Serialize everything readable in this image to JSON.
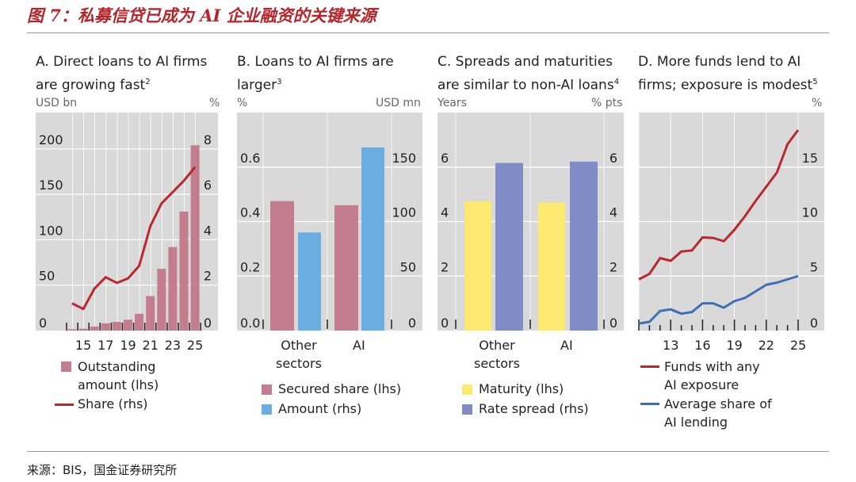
{
  "title": "图 7：私募信贷已成为 AI 企业融资的关键来源",
  "source": "来源：BIS，国金证券研究所",
  "colors": {
    "pink": "#c47d8e",
    "blue": "#6aade0",
    "yellow": "#fde870",
    "purple": "#818bc6",
    "red": "#b8282c",
    "line_blue": "#3c6fb3",
    "plot_bg": "#d9d9d9"
  },
  "chart_data": [
    {
      "id": "A",
      "type": "bar+line",
      "title": "A. Direct loans to AI firms",
      "title2": "are growing fast",
      "note": "2",
      "ylabel": "USD bn",
      "y2label": "%",
      "x": [
        14,
        15,
        16,
        17,
        18,
        19,
        20,
        21,
        22,
        23,
        24,
        25
      ],
      "xticklabels": [
        "15",
        "17",
        "19",
        "21",
        "23",
        "25"
      ],
      "yticks": [
        "0",
        "50",
        "100",
        "150",
        "200"
      ],
      "y2ticks": [
        "0",
        "2",
        "4",
        "6",
        "8"
      ],
      "ylim": [
        0,
        240
      ],
      "y2lim": [
        0,
        9.6
      ],
      "series": [
        {
          "name": "Outstanding",
          "name2": "amount (lhs)",
          "type": "bar",
          "values": [
            1.5,
            2,
            4.5,
            8,
            9.5,
            12,
            18.5,
            38,
            68,
            92,
            131,
            204
          ]
        },
        {
          "name": "Share (rhs)",
          "type": "line",
          "values": [
            1.2,
            0.95,
            1.85,
            2.35,
            2.1,
            2.3,
            2.85,
            4.6,
            5.6,
            6.1,
            6.6,
            7.2
          ]
        }
      ]
    },
    {
      "id": "B",
      "type": "bar",
      "title": "B. Loans to AI firms are",
      "title2": "larger",
      "note": "3",
      "ylabel": "%",
      "y2label": "USD mn",
      "categories": [
        "Other",
        "AI"
      ],
      "category2": [
        "sectors",
        ""
      ],
      "yticks": [
        "0.0",
        "0.2",
        "0.4",
        "0.6"
      ],
      "y2ticks": [
        "0",
        "50",
        "100",
        "150"
      ],
      "ylim": [
        0,
        0.8
      ],
      "y2lim": [
        0,
        200
      ],
      "series": [
        {
          "name": "Secured share (lhs)",
          "values": [
            0.475,
            0.46
          ]
        },
        {
          "name": "Amount (rhs)",
          "values": [
            90,
            168
          ]
        }
      ]
    },
    {
      "id": "C",
      "type": "bar",
      "title": "C. Spreads and maturities",
      "title2": "are similar to non-AI loans",
      "note": "4",
      "ylabel": "Years",
      "y2label": "% pts",
      "categories": [
        "Other",
        "AI"
      ],
      "category2": [
        "sectors",
        ""
      ],
      "yticks": [
        "0",
        "2",
        "4",
        "6"
      ],
      "y2ticks": [
        "0",
        "2",
        "4",
        "6"
      ],
      "ylim": [
        0,
        8
      ],
      "y2lim": [
        0,
        8
      ],
      "series": [
        {
          "name": "Maturity (lhs)",
          "values": [
            4.75,
            4.7
          ]
        },
        {
          "name": "Rate spread (rhs)",
          "values": [
            6.15,
            6.2
          ]
        }
      ]
    },
    {
      "id": "D",
      "type": "line",
      "title": "D. More funds lend to AI",
      "title2": "firms; exposure is modest",
      "note": "5",
      "y2label": "%",
      "x": [
        10,
        11,
        12,
        13,
        14,
        15,
        16,
        17,
        18,
        19,
        20,
        21,
        22,
        23,
        24,
        25
      ],
      "xticklabels": [
        "13",
        "16",
        "19",
        "22",
        "25"
      ],
      "y2ticks": [
        "0",
        "5",
        "10",
        "15"
      ],
      "y2lim": [
        0,
        20
      ],
      "series": [
        {
          "name": "Funds with any",
          "name2": "AI exposure",
          "values": [
            4.7,
            5.2,
            6.65,
            6.4,
            7.25,
            7.35,
            8.55,
            8.5,
            8.2,
            9.25,
            10.5,
            11.9,
            13.2,
            14.5,
            17.1,
            18.4
          ]
        },
        {
          "name": "Average share of",
          "name2": "AI lending",
          "values": [
            0.65,
            0.8,
            1.8,
            1.95,
            1.55,
            1.7,
            2.5,
            2.5,
            2.1,
            2.7,
            3.0,
            3.6,
            4.2,
            4.4,
            4.7,
            5.0
          ]
        }
      ]
    }
  ]
}
